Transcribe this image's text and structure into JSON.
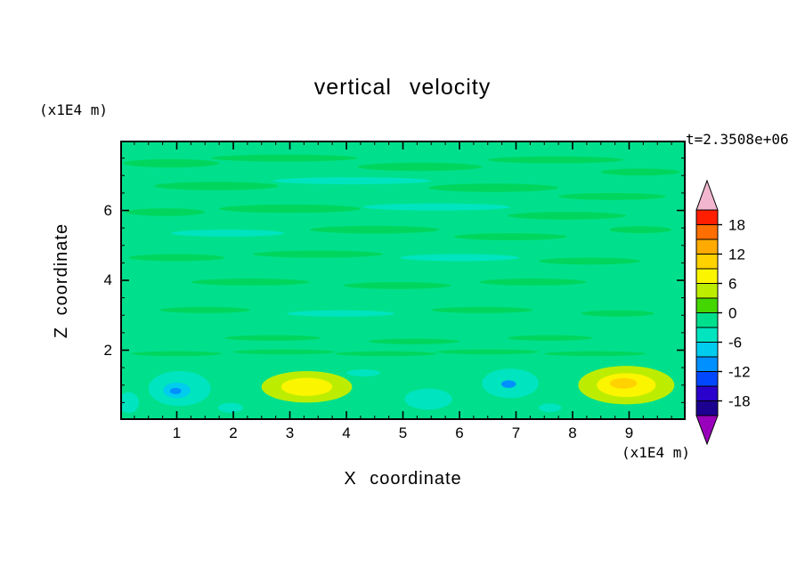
{
  "figure": {
    "title": "vertical velocity",
    "timestamp": "t=2.3508e+06",
    "background": "#ffffff"
  },
  "axes": {
    "x": {
      "label": "X coordinate",
      "unit": "(x1E4 m)",
      "ticks": [
        "1",
        "2",
        "3",
        "4",
        "5",
        "6",
        "7",
        "8",
        "9"
      ],
      "tick_values": [
        1,
        2,
        3,
        4,
        5,
        6,
        7,
        8,
        9
      ],
      "range": [
        0,
        10
      ]
    },
    "z": {
      "label": "Z coordinate",
      "unit": "(x1E4 m)",
      "ticks": [
        "2",
        "4",
        "6"
      ],
      "tick_values": [
        2,
        4,
        6
      ],
      "range": [
        0,
        8
      ]
    }
  },
  "colorbar": {
    "tick_labels": [
      "18",
      "12",
      "6",
      "0",
      "-6",
      "-12",
      "-18"
    ],
    "bands_top_to_bottom": [
      "#ff1e00",
      "#ff6e00",
      "#ffaa00",
      "#ffd200",
      "#fbf500",
      "#bced00",
      "#44d600",
      "#00e08c",
      "#00e4c0",
      "#00ccee",
      "#0090ff",
      "#0048ff",
      "#2a00cc",
      "#1c0090"
    ],
    "top_arrow": "#f2b7ce",
    "bottom_arrow": "#9900bb"
  },
  "chart_data": {
    "type": "contour",
    "title": "vertical velocity",
    "time_annotation": "t=2.3508e+06",
    "xlabel": "X coordinate (x1E4 m)",
    "zlabel": "Z coordinate (x1E4 m)",
    "x_range": [
      0,
      10
    ],
    "z_range": [
      0,
      8
    ],
    "contour_interval": 3,
    "value_range": [
      -21,
      21
    ],
    "labeled_levels": [
      -18,
      -12,
      -6,
      0,
      6,
      12,
      18
    ],
    "legend_position": "right-colorbar",
    "grid": false,
    "base_color": "#00e08c",
    "base_level": 0,
    "description": "Vertical velocity field: mostly near-zero (green) with weak mottled streaks aloft; alternating positive (yellow, ~+6) and negative (cyan/blue, ~-6 to -10) cells near the bottom boundary around z~1.",
    "features_key": [
      "x",
      "z",
      "rx",
      "rz",
      "color",
      "approx_level"
    ],
    "features": [
      [
        0.9,
        7.35,
        0.85,
        0.12,
        "#00d65e",
        2
      ],
      [
        2.9,
        7.5,
        1.3,
        0.1,
        "#00d65e",
        2
      ],
      [
        5.3,
        7.25,
        1.1,
        0.12,
        "#00d65e",
        2
      ],
      [
        7.7,
        7.45,
        1.2,
        0.1,
        "#00d65e",
        2
      ],
      [
        9.2,
        7.1,
        0.7,
        0.1,
        "#00d65e",
        2
      ],
      [
        1.7,
        6.7,
        1.1,
        0.12,
        "#00d65e",
        2
      ],
      [
        4.1,
        6.85,
        1.4,
        0.1,
        "#00e4c0",
        -4
      ],
      [
        6.6,
        6.65,
        1.15,
        0.12,
        "#00d65e",
        2
      ],
      [
        8.7,
        6.4,
        0.95,
        0.1,
        "#00d65e",
        2
      ],
      [
        0.8,
        5.95,
        0.7,
        0.11,
        "#00d65e",
        2
      ],
      [
        3.0,
        6.05,
        1.25,
        0.12,
        "#00d65e",
        2
      ],
      [
        5.6,
        6.1,
        1.3,
        0.1,
        "#00e4c0",
        -4
      ],
      [
        7.9,
        5.85,
        1.05,
        0.11,
        "#00d65e",
        2
      ],
      [
        1.9,
        5.35,
        1.0,
        0.1,
        "#00e4c0",
        -4
      ],
      [
        4.5,
        5.45,
        1.15,
        0.11,
        "#00d65e",
        2
      ],
      [
        6.9,
        5.25,
        1.0,
        0.1,
        "#00d65e",
        2
      ],
      [
        9.2,
        5.45,
        0.55,
        0.1,
        "#00d65e",
        2
      ],
      [
        1.0,
        4.65,
        0.85,
        0.1,
        "#00d65e",
        2
      ],
      [
        3.5,
        4.75,
        1.15,
        0.1,
        "#00d65e",
        2
      ],
      [
        6.0,
        4.65,
        1.05,
        0.1,
        "#00e4c0",
        -4
      ],
      [
        8.3,
        4.55,
        0.9,
        0.1,
        "#00d65e",
        2
      ],
      [
        2.3,
        3.95,
        1.05,
        0.1,
        "#00d65e",
        2
      ],
      [
        4.9,
        3.85,
        0.95,
        0.1,
        "#00d65e",
        2
      ],
      [
        7.3,
        3.95,
        0.95,
        0.1,
        "#00d65e",
        2
      ],
      [
        1.5,
        3.15,
        0.8,
        0.09,
        "#00d65e",
        2
      ],
      [
        3.9,
        3.05,
        0.95,
        0.09,
        "#00e4c0",
        -4
      ],
      [
        6.4,
        3.15,
        0.9,
        0.09,
        "#00d65e",
        2
      ],
      [
        8.8,
        3.05,
        0.65,
        0.09,
        "#00d65e",
        2
      ],
      [
        2.7,
        2.35,
        0.85,
        0.08,
        "#00d65e",
        2
      ],
      [
        5.2,
        2.25,
        0.8,
        0.08,
        "#00d65e",
        2
      ],
      [
        7.6,
        2.35,
        0.75,
        0.08,
        "#00d65e",
        2
      ],
      [
        1.0,
        1.9,
        0.8,
        0.07,
        "#00d65e",
        2
      ],
      [
        2.9,
        1.95,
        0.9,
        0.07,
        "#00d65e",
        2
      ],
      [
        4.7,
        1.9,
        0.9,
        0.07,
        "#00d65e",
        2
      ],
      [
        6.5,
        1.95,
        0.9,
        0.07,
        "#00d65e",
        2
      ],
      [
        8.4,
        1.9,
        0.9,
        0.07,
        "#00d65e",
        2
      ],
      [
        1.05,
        0.9,
        0.55,
        0.5,
        "#00e4c0",
        -4
      ],
      [
        1.0,
        0.85,
        0.24,
        0.22,
        "#00ccee",
        -7
      ],
      [
        0.98,
        0.83,
        0.1,
        0.09,
        "#0090ff",
        -10
      ],
      [
        3.3,
        0.95,
        0.8,
        0.45,
        "#bced00",
        4
      ],
      [
        3.3,
        0.95,
        0.45,
        0.26,
        "#fbf500",
        7
      ],
      [
        0.15,
        0.5,
        0.18,
        0.3,
        "#00e4c0",
        -4
      ],
      [
        1.95,
        0.35,
        0.22,
        0.14,
        "#00e4c0",
        -4
      ],
      [
        5.45,
        0.6,
        0.42,
        0.3,
        "#00e4c0",
        -4
      ],
      [
        4.3,
        1.35,
        0.3,
        0.1,
        "#00e4c0",
        -4
      ],
      [
        6.9,
        1.05,
        0.5,
        0.42,
        "#00e4c0",
        -4
      ],
      [
        6.87,
        1.03,
        0.13,
        0.11,
        "#0090ff",
        -10
      ],
      [
        7.6,
        0.35,
        0.2,
        0.12,
        "#00e4c0",
        -4
      ],
      [
        8.95,
        1.0,
        0.85,
        0.55,
        "#bced00",
        4
      ],
      [
        8.95,
        1.0,
        0.52,
        0.34,
        "#fbf500",
        7
      ],
      [
        8.9,
        1.05,
        0.24,
        0.15,
        "#ffd200",
        10
      ]
    ]
  }
}
